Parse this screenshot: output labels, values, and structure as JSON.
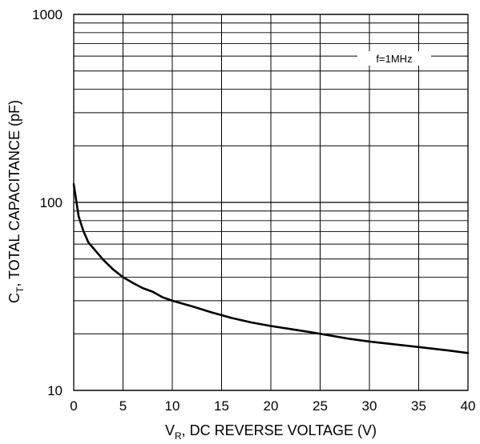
{
  "chart_data": {
    "type": "line",
    "title": "",
    "xlabel": {
      "main": "V",
      "sub": "R",
      "rest": ", DC REVERSE VOLTAGE (V)"
    },
    "ylabel": {
      "main": "C",
      "sub": "T",
      "rest": ", TOTAL CAPACITANCE (pF)"
    },
    "xlim": [
      0,
      40
    ],
    "ylim": [
      10,
      1000
    ],
    "yscale": "log",
    "grid": true,
    "x_ticks": [
      "0",
      "5",
      "10",
      "15",
      "20",
      "25",
      "30",
      "35",
      "40"
    ],
    "y_ticks": [
      "10",
      "100",
      "1000"
    ],
    "annotation": "f=1MHz",
    "series": [
      {
        "x": [
          0,
          0.5,
          1,
          1.5,
          2,
          3,
          4,
          5,
          6,
          7,
          8,
          9,
          10,
          12,
          14,
          16,
          18,
          20,
          22,
          24,
          26,
          28,
          30,
          32,
          35,
          38,
          40
        ],
        "y": [
          125,
          84,
          70,
          61,
          57,
          49.5,
          44,
          40,
          37.3,
          35,
          33.5,
          31.3,
          30,
          28,
          26,
          24.3,
          23,
          22,
          21.2,
          20.4,
          19.6,
          18.8,
          18.2,
          17.7,
          17,
          16.3,
          15.8
        ],
        "color": "#000000"
      }
    ]
  }
}
